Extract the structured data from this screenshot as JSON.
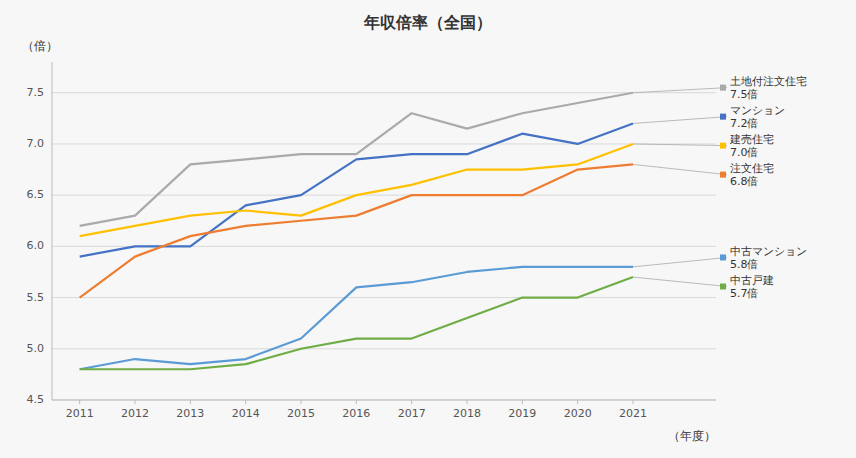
{
  "chart_data": {
    "type": "line",
    "title": "年収倍率（全国）",
    "xlabel": "（年度）",
    "ylabel": "（倍）",
    "x": [
      2011,
      2012,
      2013,
      2014,
      2015,
      2016,
      2017,
      2018,
      2019,
      2020,
      2021
    ],
    "series": [
      {
        "name": "土地付注文住宅\n7.5倍",
        "color": "#aaaaaa",
        "values": [
          6.2,
          6.3,
          6.8,
          6.85,
          6.9,
          6.9,
          7.3,
          7.15,
          7.3,
          7.4,
          7.5
        ]
      },
      {
        "name": "マンション\n7.2倍",
        "color": "#4472c4",
        "values": [
          5.9,
          6.0,
          6.0,
          6.4,
          6.5,
          6.85,
          6.9,
          6.9,
          7.1,
          7.0,
          7.2
        ]
      },
      {
        "name": "建売住宅\n7.0倍",
        "color": "#ffc000",
        "values": [
          6.1,
          6.2,
          6.3,
          6.35,
          6.3,
          6.5,
          6.6,
          6.75,
          6.75,
          6.8,
          7.0
        ]
      },
      {
        "name": "注文住宅\n6.8倍",
        "color": "#ed7d31",
        "values": [
          5.5,
          5.9,
          6.1,
          6.2,
          6.25,
          6.3,
          6.5,
          6.5,
          6.5,
          6.75,
          6.8
        ]
      },
      {
        "name": "中古マンション\n5.8倍",
        "color": "#5b9bd5",
        "values": [
          4.8,
          4.9,
          4.85,
          4.9,
          5.1,
          5.6,
          5.65,
          5.75,
          5.8,
          5.8,
          5.8
        ]
      },
      {
        "name": "中古戸建\n5.7倍",
        "color": "#70ad47",
        "values": [
          4.8,
          4.8,
          4.8,
          4.85,
          5.0,
          5.1,
          5.1,
          5.3,
          5.5,
          5.5,
          5.7
        ]
      }
    ],
    "xlim": [
      2010.5,
      2022.5
    ],
    "xticks": [
      2011,
      2012,
      2013,
      2014,
      2015,
      2016,
      2017,
      2018,
      2019,
      2020,
      2021
    ],
    "ylim": [
      4.5,
      7.8
    ],
    "yticks": [
      4.5,
      {
        "value": 5.0,
        "label": "5.0"
      },
      5.5,
      {
        "value": 6.0,
        "label": "6.0"
      },
      6.5,
      {
        "value": 7.0,
        "label": "7.0"
      },
      7.5
    ],
    "grid": true
  }
}
